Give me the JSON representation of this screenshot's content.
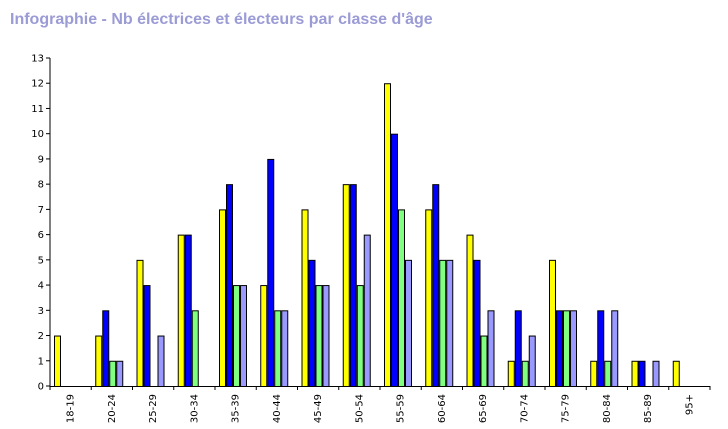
{
  "title": "Infographie - Nb électrices et électeurs par classe d'âge",
  "chart_data": {
    "type": "bar",
    "title": "Infographie - Nb électrices et électeurs par classe d'âge",
    "xlabel": "",
    "ylabel": "",
    "ylim": [
      0,
      13
    ],
    "y_ticks": [
      "0",
      "1",
      "2",
      "3",
      "4",
      "5",
      "6",
      "7",
      "8",
      "9",
      "10",
      "11",
      "12",
      "13"
    ],
    "grid": false,
    "categories": [
      "18-19",
      "20-24",
      "25-29",
      "30-34",
      "35-39",
      "40-44",
      "45-49",
      "50-54",
      "55-59",
      "60-64",
      "65-69",
      "70-74",
      "75-79",
      "80-84",
      "85-89",
      "95+"
    ],
    "series": [
      {
        "color": "#ffff00",
        "values": [
          2,
          2,
          5,
          6,
          7,
          4,
          7,
          8,
          12,
          7,
          6,
          1,
          5,
          1,
          1,
          1
        ]
      },
      {
        "color": "#0000ff",
        "values": [
          0,
          3,
          4,
          6,
          8,
          9,
          5,
          8,
          10,
          8,
          5,
          3,
          3,
          3,
          1,
          0
        ]
      },
      {
        "color": "#80ff80",
        "values": [
          0,
          1,
          0,
          3,
          4,
          3,
          4,
          4,
          7,
          5,
          2,
          1,
          3,
          1,
          0,
          0
        ]
      },
      {
        "color": "#9999ff",
        "values": [
          0,
          1,
          2,
          0,
          4,
          3,
          4,
          6,
          5,
          5,
          3,
          2,
          3,
          3,
          1,
          0
        ]
      }
    ]
  }
}
